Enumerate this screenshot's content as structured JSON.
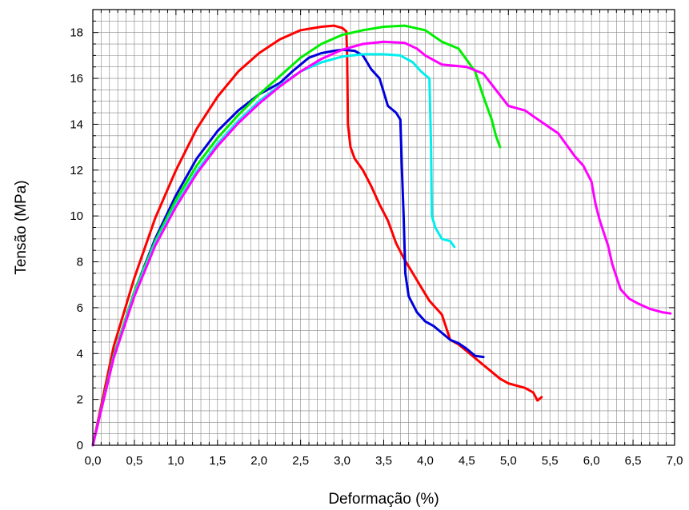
{
  "chart_data": {
    "type": "line",
    "xlabel": "Deformação (%)",
    "ylabel": "Tensão (MPa)",
    "xlim": [
      0,
      7
    ],
    "ylim": [
      0,
      19
    ],
    "grid": true,
    "x_ticks": [
      0,
      0.5,
      1,
      1.5,
      2,
      2.5,
      3,
      3.5,
      4,
      4.5,
      5,
      5.5,
      6,
      6.5,
      7
    ],
    "x_tick_labels": [
      "0,0",
      "0,5",
      "1,0",
      "1,5",
      "2,0",
      "2,5",
      "3,0",
      "3,5",
      "4,0",
      "4,5",
      "5,0",
      "5,5",
      "6,0",
      "6,5",
      "7,0"
    ],
    "y_ticks": [
      0,
      2,
      4,
      6,
      8,
      10,
      12,
      14,
      16,
      18
    ],
    "y_tick_labels": [
      "0",
      "2",
      "4",
      "6",
      "8",
      "10",
      "12",
      "14",
      "16",
      "18"
    ],
    "series": [
      {
        "color": "#ff0000",
        "points": [
          [
            0,
            0
          ],
          [
            0.25,
            4.3
          ],
          [
            0.5,
            7.3
          ],
          [
            0.75,
            9.9
          ],
          [
            1.0,
            12.0
          ],
          [
            1.25,
            13.8
          ],
          [
            1.5,
            15.2
          ],
          [
            1.75,
            16.3
          ],
          [
            2.0,
            17.1
          ],
          [
            2.25,
            17.7
          ],
          [
            2.5,
            18.1
          ],
          [
            2.75,
            18.25
          ],
          [
            2.9,
            18.3
          ],
          [
            3.0,
            18.2
          ],
          [
            3.05,
            18.05
          ],
          [
            3.06,
            17.0
          ],
          [
            3.07,
            14.0
          ],
          [
            3.1,
            13.0
          ],
          [
            3.15,
            12.5
          ],
          [
            3.25,
            12.0
          ],
          [
            3.35,
            11.3
          ],
          [
            3.45,
            10.5
          ],
          [
            3.55,
            9.8
          ],
          [
            3.65,
            8.8
          ],
          [
            3.75,
            8.1
          ],
          [
            3.85,
            7.5
          ],
          [
            3.95,
            6.9
          ],
          [
            4.05,
            6.3
          ],
          [
            4.2,
            5.7
          ],
          [
            4.3,
            4.6
          ],
          [
            4.4,
            4.4
          ],
          [
            4.5,
            4.1
          ],
          [
            4.6,
            3.8
          ],
          [
            4.7,
            3.5
          ],
          [
            4.8,
            3.2
          ],
          [
            4.9,
            2.9
          ],
          [
            5.0,
            2.7
          ],
          [
            5.1,
            2.6
          ],
          [
            5.2,
            2.5
          ],
          [
            5.3,
            2.3
          ],
          [
            5.35,
            1.95
          ],
          [
            5.4,
            2.1
          ]
        ]
      },
      {
        "color": "#0000dd",
        "points": [
          [
            0,
            0
          ],
          [
            0.25,
            3.9
          ],
          [
            0.5,
            6.7
          ],
          [
            0.75,
            9.0
          ],
          [
            1.0,
            10.9
          ],
          [
            1.25,
            12.5
          ],
          [
            1.5,
            13.7
          ],
          [
            1.75,
            14.6
          ],
          [
            2.0,
            15.3
          ],
          [
            2.25,
            15.8
          ],
          [
            2.4,
            16.3
          ],
          [
            2.5,
            16.6
          ],
          [
            2.6,
            16.9
          ],
          [
            2.75,
            17.1
          ],
          [
            2.9,
            17.2
          ],
          [
            3.0,
            17.25
          ],
          [
            3.15,
            17.2
          ],
          [
            3.25,
            17.0
          ],
          [
            3.35,
            16.4
          ],
          [
            3.45,
            16.0
          ],
          [
            3.55,
            14.8
          ],
          [
            3.65,
            14.5
          ],
          [
            3.7,
            14.2
          ],
          [
            3.72,
            12.0
          ],
          [
            3.74,
            10.0
          ],
          [
            3.76,
            7.5
          ],
          [
            3.8,
            6.5
          ],
          [
            3.9,
            5.8
          ],
          [
            4.0,
            5.4
          ],
          [
            4.1,
            5.2
          ],
          [
            4.2,
            4.9
          ],
          [
            4.3,
            4.6
          ],
          [
            4.4,
            4.45
          ],
          [
            4.5,
            4.2
          ],
          [
            4.6,
            3.9
          ],
          [
            4.7,
            3.85
          ]
        ]
      },
      {
        "color": "#00ee00",
        "points": [
          [
            0,
            0
          ],
          [
            0.25,
            3.9
          ],
          [
            0.5,
            6.7
          ],
          [
            0.75,
            8.9
          ],
          [
            1.0,
            10.7
          ],
          [
            1.25,
            12.2
          ],
          [
            1.5,
            13.4
          ],
          [
            1.75,
            14.4
          ],
          [
            2.0,
            15.3
          ],
          [
            2.25,
            16.1
          ],
          [
            2.5,
            16.9
          ],
          [
            2.75,
            17.5
          ],
          [
            3.0,
            17.9
          ],
          [
            3.25,
            18.1
          ],
          [
            3.5,
            18.25
          ],
          [
            3.75,
            18.3
          ],
          [
            4.0,
            18.1
          ],
          [
            4.2,
            17.6
          ],
          [
            4.4,
            17.3
          ],
          [
            4.5,
            16.8
          ],
          [
            4.6,
            16.3
          ],
          [
            4.7,
            15.2
          ],
          [
            4.8,
            14.2
          ],
          [
            4.85,
            13.5
          ],
          [
            4.9,
            13.0
          ]
        ]
      },
      {
        "color": "#00eeee",
        "points": [
          [
            0,
            0
          ],
          [
            0.25,
            3.85
          ],
          [
            0.5,
            6.6
          ],
          [
            0.75,
            8.8
          ],
          [
            1.0,
            10.5
          ],
          [
            1.25,
            11.95
          ],
          [
            1.5,
            13.15
          ],
          [
            1.75,
            14.15
          ],
          [
            2.0,
            15.0
          ],
          [
            2.25,
            15.7
          ],
          [
            2.5,
            16.3
          ],
          [
            2.75,
            16.7
          ],
          [
            3.0,
            16.95
          ],
          [
            3.25,
            17.05
          ],
          [
            3.5,
            17.05
          ],
          [
            3.7,
            17.0
          ],
          [
            3.85,
            16.7
          ],
          [
            3.95,
            16.3
          ],
          [
            4.05,
            16.0
          ],
          [
            4.07,
            13.0
          ],
          [
            4.08,
            10.0
          ],
          [
            4.12,
            9.5
          ],
          [
            4.2,
            9.0
          ],
          [
            4.3,
            8.9
          ],
          [
            4.35,
            8.65
          ]
        ]
      },
      {
        "color": "#ff00ff",
        "points": [
          [
            0,
            0
          ],
          [
            0.25,
            3.8
          ],
          [
            0.5,
            6.5
          ],
          [
            0.75,
            8.7
          ],
          [
            1.0,
            10.4
          ],
          [
            1.25,
            11.85
          ],
          [
            1.5,
            13.05
          ],
          [
            1.75,
            14.05
          ],
          [
            2.0,
            14.9
          ],
          [
            2.25,
            15.65
          ],
          [
            2.5,
            16.3
          ],
          [
            2.75,
            16.85
          ],
          [
            3.0,
            17.25
          ],
          [
            3.25,
            17.5
          ],
          [
            3.5,
            17.6
          ],
          [
            3.75,
            17.55
          ],
          [
            3.9,
            17.3
          ],
          [
            4.0,
            17.0
          ],
          [
            4.2,
            16.6
          ],
          [
            4.5,
            16.5
          ],
          [
            4.7,
            16.2
          ],
          [
            4.85,
            15.5
          ],
          [
            5.0,
            14.8
          ],
          [
            5.2,
            14.6
          ],
          [
            5.4,
            14.1
          ],
          [
            5.6,
            13.6
          ],
          [
            5.8,
            12.6
          ],
          [
            5.9,
            12.2
          ],
          [
            6.0,
            11.5
          ],
          [
            6.05,
            10.5
          ],
          [
            6.1,
            9.8
          ],
          [
            6.2,
            8.7
          ],
          [
            6.25,
            7.9
          ],
          [
            6.35,
            6.8
          ],
          [
            6.45,
            6.4
          ],
          [
            6.55,
            6.2
          ],
          [
            6.7,
            5.95
          ],
          [
            6.85,
            5.8
          ],
          [
            6.95,
            5.75
          ]
        ]
      }
    ]
  }
}
